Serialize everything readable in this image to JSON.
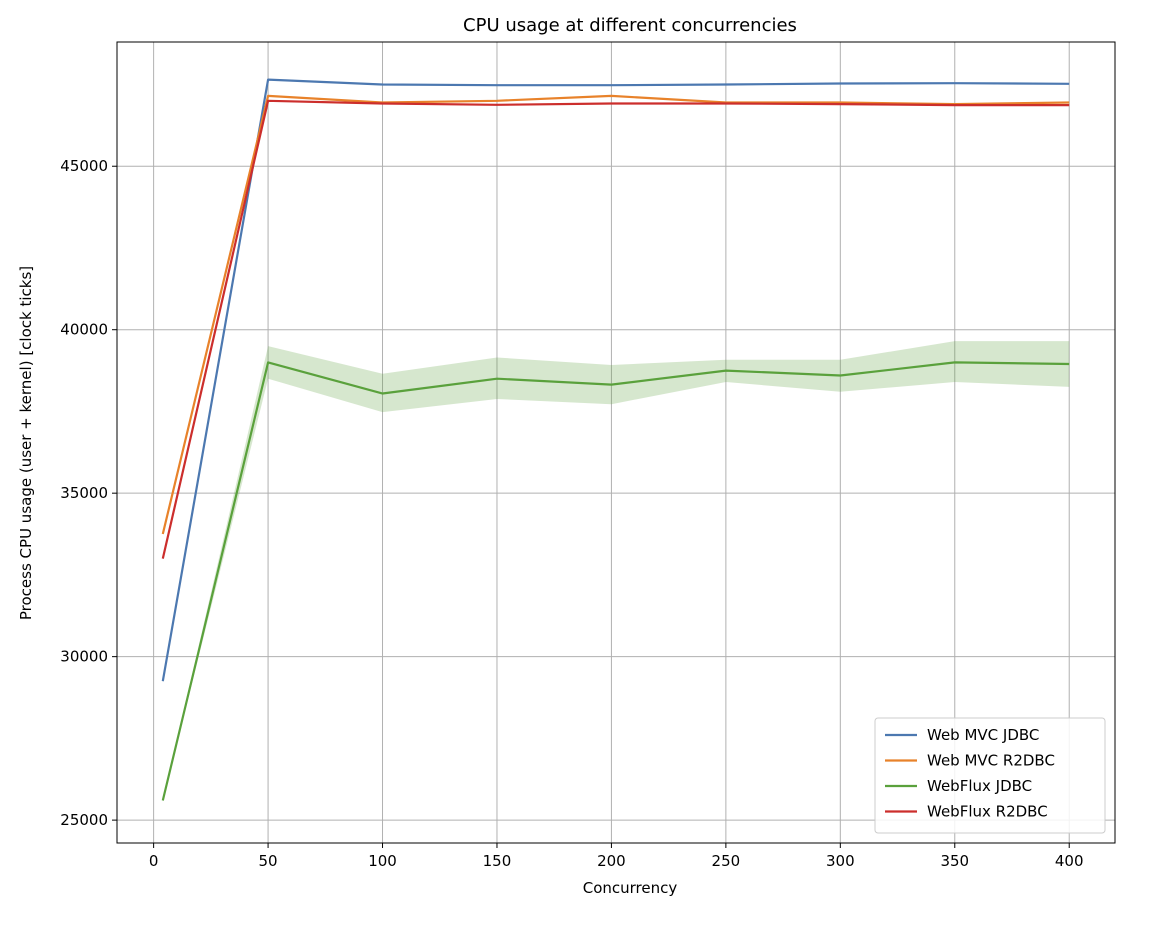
{
  "chart_data": {
    "type": "line",
    "title": "CPU usage at different concurrencies",
    "xlabel": "Concurrency",
    "ylabel": "Process CPU usage (user + kernel) [clock ticks]",
    "xlim": [
      -16,
      420
    ],
    "ylim": [
      24300,
      48800
    ],
    "xticks": [
      0,
      50,
      100,
      150,
      200,
      250,
      300,
      350,
      400
    ],
    "yticks": [
      25000,
      30000,
      35000,
      40000,
      45000
    ],
    "grid": true,
    "legend_position": "lower-right",
    "x": [
      4,
      50,
      100,
      150,
      200,
      250,
      300,
      350,
      400
    ],
    "series": [
      {
        "name": "Web MVC JDBC",
        "color": "#4c78b0",
        "values": [
          29250,
          47650,
          47500,
          47480,
          47480,
          47500,
          47530,
          47540,
          47520
        ]
      },
      {
        "name": "Web MVC R2DBC",
        "color": "#e8822a",
        "values": [
          33750,
          47150,
          46950,
          47000,
          47150,
          46950,
          46950,
          46900,
          46950
        ]
      },
      {
        "name": "WebFlux JDBC",
        "color": "#5aa13c",
        "values": [
          25600,
          39000,
          38050,
          38500,
          38320,
          38750,
          38600,
          39000,
          38950
        ],
        "band_lower": [
          25600,
          38500,
          37480,
          37880,
          37720,
          38400,
          38100,
          38400,
          38250
        ],
        "band_upper": [
          25600,
          39500,
          38650,
          39150,
          38920,
          39080,
          39080,
          39650,
          39650
        ]
      },
      {
        "name": "WebFlux R2DBC",
        "color": "#cc2e2c",
        "values": [
          33000,
          47000,
          46920,
          46880,
          46920,
          46920,
          46900,
          46870,
          46870
        ]
      }
    ]
  }
}
